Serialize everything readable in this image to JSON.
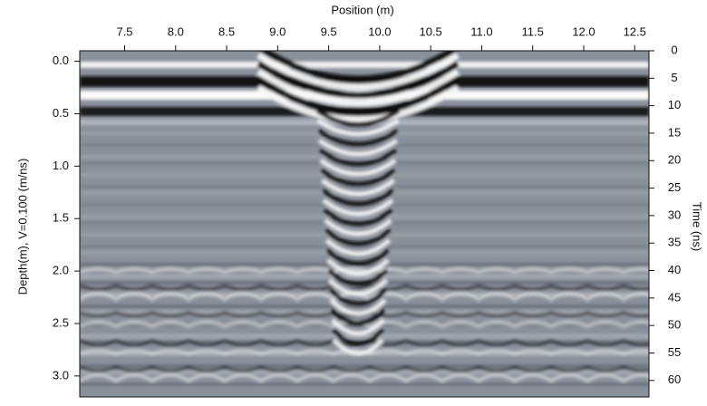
{
  "chart_data": {
    "type": "radargram",
    "x_label": "Position (m)",
    "y_label": "Depth(m), V=0.100 (m/ns)",
    "y2_label": "Time (ns)",
    "xlim": [
      7.06,
      12.64
    ],
    "xticks": [
      7.5,
      {
        "value": 8,
        "label": "8.0"
      },
      8.5,
      {
        "value": 9,
        "label": "9.0"
      },
      9.5,
      {
        "value": 10,
        "label": "10.0"
      },
      10.5,
      {
        "value": 11,
        "label": "11.0"
      },
      11.5,
      {
        "value": 12,
        "label": "12.0"
      },
      12.5
    ],
    "ylim": [
      -0.1,
      3.2
    ],
    "yticks": [
      {
        "value": 0,
        "label": "0.0"
      },
      0.5,
      {
        "value": 1,
        "label": "1.0"
      },
      1.5,
      {
        "value": 2,
        "label": "2.0"
      },
      2.5,
      {
        "value": 3,
        "label": "3.0"
      }
    ],
    "y2lim": [
      0,
      63
    ],
    "y2ticks": [
      0,
      5,
      10,
      15,
      20,
      25,
      30,
      35,
      40,
      45,
      50,
      55,
      60
    ]
  }
}
